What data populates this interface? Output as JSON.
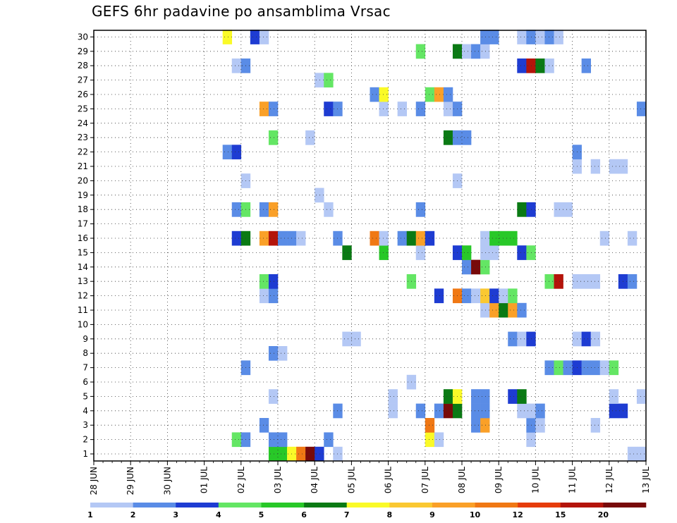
{
  "chart_data": {
    "type": "heatmap",
    "title": "GEFS 6hr padavine po ansamblima Vrsac",
    "members": [
      "1",
      "2",
      "3",
      "4",
      "5",
      "6",
      "7",
      "8",
      "9",
      "10",
      "11",
      "12",
      "13",
      "14",
      "15",
      "16",
      "17",
      "18",
      "19",
      "20",
      "21",
      "22",
      "23",
      "24",
      "25",
      "26",
      "27",
      "28",
      "29",
      "30"
    ],
    "date_ticks": [
      "28 JUN",
      "29 JUN",
      "30 JUN",
      "01 JUL",
      "02 JUL",
      "03 JUL",
      "04 JUL",
      "05 JUL",
      "06 JUL",
      "07 JUL",
      "08 JUL",
      "09 JUL",
      "10 JUL",
      "11 JUL",
      "12 JUL",
      "13 JUL"
    ],
    "step_hours": 6,
    "grid": true,
    "legend_position": "bottom",
    "colorbar": {
      "labels": [
        "1",
        "2",
        "3",
        "4",
        "5",
        "6",
        "7",
        "8",
        "9",
        "10",
        "12",
        "15",
        "20"
      ],
      "colors": [
        "#b4c8f5",
        "#5a8ce6",
        "#1e3cd2",
        "#64e664",
        "#28c828",
        "#0a7a14",
        "#fafa28",
        "#fac832",
        "#faa028",
        "#f07814",
        "#e63c0a",
        "#b4140a",
        "#780a0a"
      ]
    },
    "cells": [
      {
        "m": 0,
        "s": 19,
        "c": 4
      },
      {
        "m": 0,
        "s": 20,
        "c": 4
      },
      {
        "m": 0,
        "s": 21,
        "c": 6
      },
      {
        "m": 0,
        "s": 22,
        "c": 9
      },
      {
        "m": 0,
        "s": 23,
        "c": 12
      },
      {
        "m": 0,
        "s": 24,
        "c": 2
      },
      {
        "m": 0,
        "s": 26,
        "c": 0
      },
      {
        "m": 0,
        "s": 58,
        "c": 0
      },
      {
        "m": 0,
        "s": 59,
        "c": 0
      },
      {
        "m": 1,
        "s": 15,
        "c": 3
      },
      {
        "m": 1,
        "s": 16,
        "c": 1
      },
      {
        "m": 1,
        "s": 19,
        "c": 1
      },
      {
        "m": 1,
        "s": 20,
        "c": 1
      },
      {
        "m": 1,
        "s": 25,
        "c": 1
      },
      {
        "m": 1,
        "s": 36,
        "c": 6
      },
      {
        "m": 1,
        "s": 37,
        "c": 0
      },
      {
        "m": 1,
        "s": 47,
        "c": 0
      },
      {
        "m": 2,
        "s": 18,
        "c": 1
      },
      {
        "m": 2,
        "s": 36,
        "c": 9
      },
      {
        "m": 2,
        "s": 41,
        "c": 1
      },
      {
        "m": 2,
        "s": 42,
        "c": 8
      },
      {
        "m": 2,
        "s": 47,
        "c": 1
      },
      {
        "m": 2,
        "s": 48,
        "c": 0
      },
      {
        "m": 2,
        "s": 54,
        "c": 0
      },
      {
        "m": 3,
        "s": 26,
        "c": 1
      },
      {
        "m": 3,
        "s": 32,
        "c": 0
      },
      {
        "m": 3,
        "s": 35,
        "c": 1
      },
      {
        "m": 3,
        "s": 37,
        "c": 1
      },
      {
        "m": 3,
        "s": 38,
        "c": 12
      },
      {
        "m": 3,
        "s": 39,
        "c": 5
      },
      {
        "m": 3,
        "s": 41,
        "c": 1
      },
      {
        "m": 3,
        "s": 42,
        "c": 1
      },
      {
        "m": 3,
        "s": 46,
        "c": 0
      },
      {
        "m": 3,
        "s": 47,
        "c": 0
      },
      {
        "m": 3,
        "s": 48,
        "c": 1
      },
      {
        "m": 3,
        "s": 56,
        "c": 2
      },
      {
        "m": 3,
        "s": 57,
        "c": 2
      },
      {
        "m": 4,
        "s": 19,
        "c": 0
      },
      {
        "m": 4,
        "s": 32,
        "c": 0
      },
      {
        "m": 4,
        "s": 38,
        "c": 5
      },
      {
        "m": 4,
        "s": 39,
        "c": 6
      },
      {
        "m": 4,
        "s": 41,
        "c": 1
      },
      {
        "m": 4,
        "s": 42,
        "c": 1
      },
      {
        "m": 4,
        "s": 45,
        "c": 2
      },
      {
        "m": 4,
        "s": 46,
        "c": 5
      },
      {
        "m": 4,
        "s": 56,
        "c": 0
      },
      {
        "m": 4,
        "s": 59,
        "c": 0
      },
      {
        "m": 5,
        "s": 34,
        "c": 0
      },
      {
        "m": 6,
        "s": 16,
        "c": 1
      },
      {
        "m": 6,
        "s": 49,
        "c": 1
      },
      {
        "m": 6,
        "s": 50,
        "c": 3
      },
      {
        "m": 6,
        "s": 51,
        "c": 1
      },
      {
        "m": 6,
        "s": 52,
        "c": 2
      },
      {
        "m": 6,
        "s": 53,
        "c": 1
      },
      {
        "m": 6,
        "s": 54,
        "c": 1
      },
      {
        "m": 6,
        "s": 55,
        "c": 0
      },
      {
        "m": 6,
        "s": 56,
        "c": 3
      },
      {
        "m": 7,
        "s": 19,
        "c": 1
      },
      {
        "m": 7,
        "s": 20,
        "c": 0
      },
      {
        "m": 8,
        "s": 27,
        "c": 0
      },
      {
        "m": 8,
        "s": 28,
        "c": 0
      },
      {
        "m": 8,
        "s": 45,
        "c": 1
      },
      {
        "m": 8,
        "s": 46,
        "c": 0
      },
      {
        "m": 8,
        "s": 47,
        "c": 2
      },
      {
        "m": 8,
        "s": 52,
        "c": 0
      },
      {
        "m": 8,
        "s": 53,
        "c": 2
      },
      {
        "m": 8,
        "s": 54,
        "c": 0
      },
      {
        "m": 10,
        "s": 42,
        "c": 0
      },
      {
        "m": 10,
        "s": 43,
        "c": 8
      },
      {
        "m": 10,
        "s": 44,
        "c": 5
      },
      {
        "m": 10,
        "s": 45,
        "c": 8
      },
      {
        "m": 10,
        "s": 46,
        "c": 1
      },
      {
        "m": 11,
        "s": 18,
        "c": 0
      },
      {
        "m": 11,
        "s": 19,
        "c": 1
      },
      {
        "m": 11,
        "s": 37,
        "c": 2
      },
      {
        "m": 11,
        "s": 39,
        "c": 9
      },
      {
        "m": 11,
        "s": 40,
        "c": 1
      },
      {
        "m": 11,
        "s": 41,
        "c": 0
      },
      {
        "m": 11,
        "s": 42,
        "c": 7
      },
      {
        "m": 11,
        "s": 43,
        "c": 2
      },
      {
        "m": 11,
        "s": 44,
        "c": 0
      },
      {
        "m": 11,
        "s": 45,
        "c": 3
      },
      {
        "m": 12,
        "s": 18,
        "c": 3
      },
      {
        "m": 12,
        "s": 19,
        "c": 2
      },
      {
        "m": 12,
        "s": 34,
        "c": 3
      },
      {
        "m": 12,
        "s": 49,
        "c": 3
      },
      {
        "m": 12,
        "s": 50,
        "c": 11
      },
      {
        "m": 12,
        "s": 52,
        "c": 0
      },
      {
        "m": 12,
        "s": 53,
        "c": 0
      },
      {
        "m": 12,
        "s": 54,
        "c": 0
      },
      {
        "m": 12,
        "s": 57,
        "c": 2
      },
      {
        "m": 12,
        "s": 58,
        "c": 1
      },
      {
        "m": 13,
        "s": 40,
        "c": 1
      },
      {
        "m": 13,
        "s": 41,
        "c": 12
      },
      {
        "m": 13,
        "s": 42,
        "c": 3
      },
      {
        "m": 14,
        "s": 27,
        "c": 5
      },
      {
        "m": 14,
        "s": 31,
        "c": 4
      },
      {
        "m": 14,
        "s": 35,
        "c": 0
      },
      {
        "m": 14,
        "s": 39,
        "c": 2
      },
      {
        "m": 14,
        "s": 40,
        "c": 4
      },
      {
        "m": 14,
        "s": 42,
        "c": 0
      },
      {
        "m": 14,
        "s": 43,
        "c": 0
      },
      {
        "m": 14,
        "s": 46,
        "c": 2
      },
      {
        "m": 14,
        "s": 47,
        "c": 3
      },
      {
        "m": 15,
        "s": 15,
        "c": 2
      },
      {
        "m": 15,
        "s": 16,
        "c": 5
      },
      {
        "m": 15,
        "s": 18,
        "c": 8
      },
      {
        "m": 15,
        "s": 19,
        "c": 11
      },
      {
        "m": 15,
        "s": 20,
        "c": 1
      },
      {
        "m": 15,
        "s": 21,
        "c": 1
      },
      {
        "m": 15,
        "s": 22,
        "c": 0
      },
      {
        "m": 15,
        "s": 26,
        "c": 1
      },
      {
        "m": 15,
        "s": 30,
        "c": 9
      },
      {
        "m": 15,
        "s": 31,
        "c": 0
      },
      {
        "m": 15,
        "s": 33,
        "c": 1
      },
      {
        "m": 15,
        "s": 34,
        "c": 5
      },
      {
        "m": 15,
        "s": 35,
        "c": 8
      },
      {
        "m": 15,
        "s": 36,
        "c": 2
      },
      {
        "m": 15,
        "s": 42,
        "c": 0
      },
      {
        "m": 15,
        "s": 43,
        "c": 4
      },
      {
        "m": 15,
        "s": 44,
        "c": 4
      },
      {
        "m": 15,
        "s": 45,
        "c": 4
      },
      {
        "m": 15,
        "s": 55,
        "c": 0
      },
      {
        "m": 15,
        "s": 58,
        "c": 0
      },
      {
        "m": 17,
        "s": 15,
        "c": 1
      },
      {
        "m": 17,
        "s": 16,
        "c": 3
      },
      {
        "m": 17,
        "s": 18,
        "c": 1
      },
      {
        "m": 17,
        "s": 19,
        "c": 8
      },
      {
        "m": 17,
        "s": 25,
        "c": 0
      },
      {
        "m": 17,
        "s": 35,
        "c": 1
      },
      {
        "m": 17,
        "s": 46,
        "c": 5
      },
      {
        "m": 17,
        "s": 47,
        "c": 2
      },
      {
        "m": 17,
        "s": 50,
        "c": 0
      },
      {
        "m": 17,
        "s": 51,
        "c": 0
      },
      {
        "m": 18,
        "s": 24,
        "c": 0
      },
      {
        "m": 19,
        "s": 16,
        "c": 0
      },
      {
        "m": 19,
        "s": 39,
        "c": 0
      },
      {
        "m": 20,
        "s": 52,
        "c": 0
      },
      {
        "m": 20,
        "s": 54,
        "c": 0
      },
      {
        "m": 20,
        "s": 56,
        "c": 0
      },
      {
        "m": 20,
        "s": 57,
        "c": 0
      },
      {
        "m": 21,
        "s": 14,
        "c": 1
      },
      {
        "m": 21,
        "s": 15,
        "c": 2
      },
      {
        "m": 21,
        "s": 52,
        "c": 1
      },
      {
        "m": 22,
        "s": 19,
        "c": 3
      },
      {
        "m": 22,
        "s": 23,
        "c": 0
      },
      {
        "m": 22,
        "s": 38,
        "c": 5
      },
      {
        "m": 22,
        "s": 39,
        "c": 1
      },
      {
        "m": 22,
        "s": 40,
        "c": 1
      },
      {
        "m": 24,
        "s": 18,
        "c": 8
      },
      {
        "m": 24,
        "s": 19,
        "c": 1
      },
      {
        "m": 24,
        "s": 25,
        "c": 2
      },
      {
        "m": 24,
        "s": 26,
        "c": 1
      },
      {
        "m": 24,
        "s": 31,
        "c": 0
      },
      {
        "m": 24,
        "s": 33,
        "c": 0
      },
      {
        "m": 24,
        "s": 35,
        "c": 1
      },
      {
        "m": 24,
        "s": 38,
        "c": 0
      },
      {
        "m": 24,
        "s": 39,
        "c": 1
      },
      {
        "m": 24,
        "s": 59,
        "c": 1
      },
      {
        "m": 25,
        "s": 30,
        "c": 1
      },
      {
        "m": 25,
        "s": 31,
        "c": 6
      },
      {
        "m": 25,
        "s": 36,
        "c": 3
      },
      {
        "m": 25,
        "s": 37,
        "c": 8
      },
      {
        "m": 25,
        "s": 38,
        "c": 1
      },
      {
        "m": 26,
        "s": 24,
        "c": 0
      },
      {
        "m": 26,
        "s": 25,
        "c": 3
      },
      {
        "m": 27,
        "s": 15,
        "c": 0
      },
      {
        "m": 27,
        "s": 16,
        "c": 1
      },
      {
        "m": 27,
        "s": 46,
        "c": 2
      },
      {
        "m": 27,
        "s": 47,
        "c": 11
      },
      {
        "m": 27,
        "s": 48,
        "c": 5
      },
      {
        "m": 27,
        "s": 49,
        "c": 0
      },
      {
        "m": 27,
        "s": 53,
        "c": 1
      },
      {
        "m": 28,
        "s": 35,
        "c": 3
      },
      {
        "m": 28,
        "s": 39,
        "c": 5
      },
      {
        "m": 28,
        "s": 40,
        "c": 0
      },
      {
        "m": 28,
        "s": 41,
        "c": 1
      },
      {
        "m": 28,
        "s": 42,
        "c": 0
      },
      {
        "m": 29,
        "s": 14,
        "c": 6
      },
      {
        "m": 29,
        "s": 17,
        "c": 2
      },
      {
        "m": 29,
        "s": 18,
        "c": 0
      },
      {
        "m": 29,
        "s": 42,
        "c": 1
      },
      {
        "m": 29,
        "s": 43,
        "c": 1
      },
      {
        "m": 29,
        "s": 46,
        "c": 0
      },
      {
        "m": 29,
        "s": 47,
        "c": 1
      },
      {
        "m": 29,
        "s": 48,
        "c": 0
      },
      {
        "m": 29,
        "s": 49,
        "c": 1
      },
      {
        "m": 29,
        "s": 50,
        "c": 0
      }
    ]
  }
}
